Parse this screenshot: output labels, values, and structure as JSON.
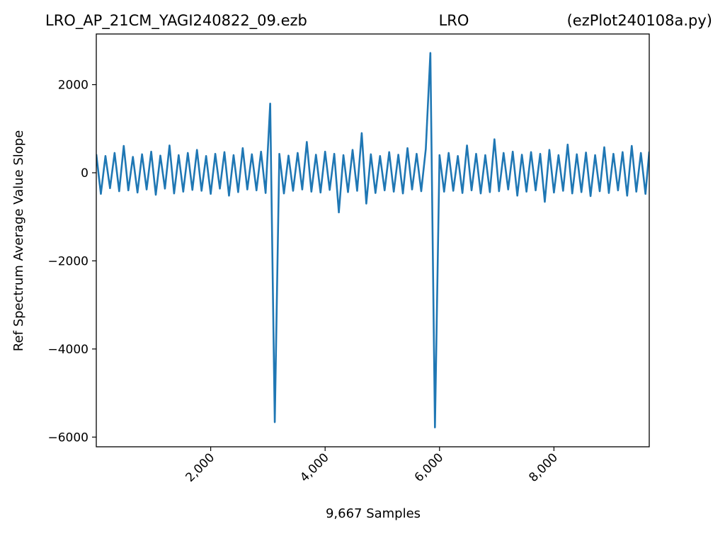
{
  "chart_data": {
    "type": "line",
    "titles": [
      "LRO_AP_21CM_YAGI240822_09.ezb",
      "LRO",
      "(ezPlot240108a.py)"
    ],
    "x_label": "9,667 Samples",
    "y_label": "Ref Spectrum Average Value Slope",
    "xlim": [
      0,
      9666
    ],
    "ylim": [
      -6220,
      3150
    ],
    "xticks": [
      {
        "value": 2000,
        "label": "2,000"
      },
      {
        "value": 4000,
        "label": "4,000"
      },
      {
        "value": 6000,
        "label": "6,000"
      },
      {
        "value": 8000,
        "label": "8,000"
      }
    ],
    "yticks": [
      {
        "value": -6000,
        "label": "−6000"
      },
      {
        "value": -4000,
        "label": "−4000"
      },
      {
        "value": -2000,
        "label": "−2000"
      },
      0,
      2000
    ],
    "color": "#1f77b4",
    "x": [
      0,
      80,
      160,
      240,
      320,
      400,
      480,
      560,
      640,
      720,
      800,
      880,
      960,
      1040,
      1120,
      1200,
      1280,
      1360,
      1440,
      1520,
      1600,
      1680,
      1760,
      1840,
      1920,
      2000,
      2080,
      2160,
      2240,
      2320,
      2400,
      2480,
      2560,
      2640,
      2720,
      2800,
      2880,
      2960,
      3040,
      3120,
      3200,
      3280,
      3360,
      3440,
      3520,
      3600,
      3680,
      3760,
      3840,
      3920,
      4000,
      4080,
      4160,
      4240,
      4320,
      4400,
      4480,
      4560,
      4640,
      4720,
      4800,
      4880,
      4960,
      5040,
      5120,
      5200,
      5280,
      5360,
      5440,
      5520,
      5600,
      5680,
      5760,
      5840,
      5920,
      6000,
      6080,
      6160,
      6240,
      6320,
      6400,
      6480,
      6560,
      6640,
      6720,
      6800,
      6880,
      6960,
      7040,
      7120,
      7200,
      7280,
      7360,
      7440,
      7520,
      7600,
      7680,
      7760,
      7840,
      7920,
      8000,
      8080,
      8160,
      8240,
      8320,
      8400,
      8480,
      8560,
      8640,
      8720,
      8800,
      8880,
      8960,
      9040,
      9120,
      9200,
      9280,
      9360,
      9440,
      9520,
      9600,
      9666
    ],
    "values": [
      420,
      -480,
      380,
      -350,
      450,
      -420,
      610,
      -400,
      360,
      -450,
      420,
      -380,
      480,
      -500,
      390,
      -360,
      620,
      -470,
      400,
      -430,
      450,
      -390,
      520,
      -410,
      380,
      -480,
      430,
      -360,
      470,
      -520,
      400,
      -440,
      560,
      -380,
      420,
      -400,
      480,
      -460,
      1570,
      -5660,
      430,
      -470,
      390,
      -410,
      450,
      -380,
      700,
      -430,
      410,
      -450,
      480,
      -390,
      430,
      -900,
      400,
      -440,
      520,
      -410,
      900,
      -700,
      420,
      -460,
      380,
      -400,
      470,
      -430,
      410,
      -470,
      560,
      -380,
      430,
      -420,
      540,
      2720,
      -5780,
      400,
      -430,
      450,
      -410,
      380,
      -460,
      620,
      -400,
      430,
      -470,
      400,
      -440,
      760,
      -420,
      450,
      -380,
      480,
      -520,
      410,
      -430,
      470,
      -400,
      430,
      -660,
      520,
      -450,
      400,
      -410,
      640,
      -470,
      420,
      -440,
      460,
      -530,
      400,
      -420,
      580,
      -460,
      430,
      -400,
      470,
      -520,
      610,
      -430,
      450,
      -480,
      480
    ]
  }
}
